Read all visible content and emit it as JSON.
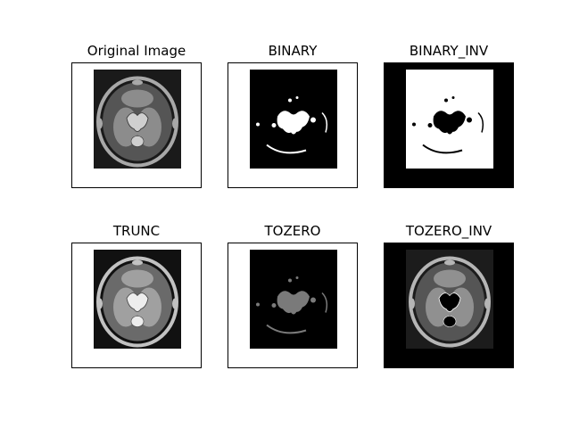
{
  "figure": {
    "panels": [
      {
        "id": "original",
        "title": "Original Image",
        "frame_bg": "#ffffff",
        "image_bg": "#1a1a1a",
        "variant": "original"
      },
      {
        "id": "binary",
        "title": "BINARY",
        "frame_bg": "#ffffff",
        "image_bg": "#000000",
        "variant": "binary"
      },
      {
        "id": "binary_inv",
        "title": "BINARY_INV",
        "frame_bg": "#000000",
        "image_bg": "#ffffff",
        "variant": "binary_inv"
      },
      {
        "id": "trunc",
        "title": "TRUNC",
        "frame_bg": "#ffffff",
        "image_bg": "#111111",
        "variant": "trunc"
      },
      {
        "id": "tozero",
        "title": "TOZERO",
        "frame_bg": "#ffffff",
        "image_bg": "#000000",
        "variant": "tozero"
      },
      {
        "id": "tozero_inv",
        "title": "TOZERO_INV",
        "frame_bg": "#000000",
        "image_bg": "#1c1c1c",
        "variant": "tozero_inv"
      }
    ]
  }
}
